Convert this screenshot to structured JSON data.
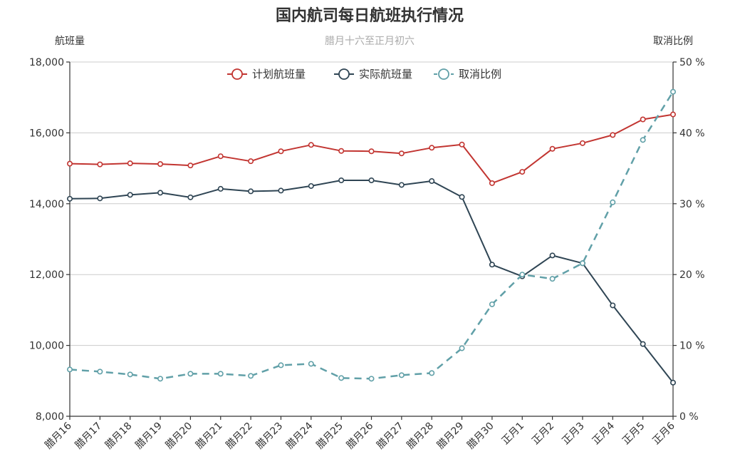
{
  "chart_data": {
    "type": "line",
    "title": "国内航司每日航班执行情况",
    "subtitle": "腊月十六至正月初六",
    "ylabel_left": "航班量",
    "ylabel_right": "取消比例",
    "categories": [
      "腊月16",
      "腊月17",
      "腊月18",
      "腊月19",
      "腊月20",
      "腊月21",
      "腊月22",
      "腊月23",
      "腊月24",
      "腊月25",
      "腊月26",
      "腊月27",
      "腊月28",
      "腊月29",
      "腊月30",
      "正月1",
      "正月2",
      "正月3",
      "正月4",
      "正月5",
      "正月6"
    ],
    "ylim_left": [
      8000,
      18000
    ],
    "yticks_left": [
      "8,000",
      "10,000",
      "12,000",
      "14,000",
      "16,000",
      "18,000"
    ],
    "ylim_right": [
      0,
      50
    ],
    "yticks_right": [
      "0 %",
      "10 %",
      "20 %",
      "30 %",
      "40 %",
      "50 %"
    ],
    "grid": true,
    "legend_position": "top-center",
    "series": [
      {
        "name": "计划航班量",
        "axis": "left",
        "color": "#c23531",
        "dashed": false,
        "values": [
          15130,
          15110,
          15140,
          15120,
          15080,
          15340,
          15200,
          15480,
          15660,
          15490,
          15480,
          15420,
          15580,
          15670,
          14580,
          14900,
          15550,
          15710,
          15940,
          16380,
          16520
        ]
      },
      {
        "name": "实际航班量",
        "axis": "left",
        "color": "#2f4554",
        "dashed": false,
        "values": [
          14140,
          14150,
          14250,
          14310,
          14180,
          14420,
          14350,
          14370,
          14500,
          14660,
          14660,
          14530,
          14640,
          14190,
          12280,
          11950,
          12540,
          12320,
          11130,
          10040,
          8950
        ]
      },
      {
        "name": "取消比例",
        "axis": "right",
        "color": "#61a0a8",
        "dashed": true,
        "values": [
          6.6,
          6.3,
          5.9,
          5.3,
          6.0,
          6.0,
          5.7,
          7.2,
          7.4,
          5.4,
          5.3,
          5.8,
          6.1,
          9.6,
          15.8,
          20.0,
          19.4,
          21.6,
          30.2,
          39.0,
          45.8
        ]
      }
    ]
  }
}
